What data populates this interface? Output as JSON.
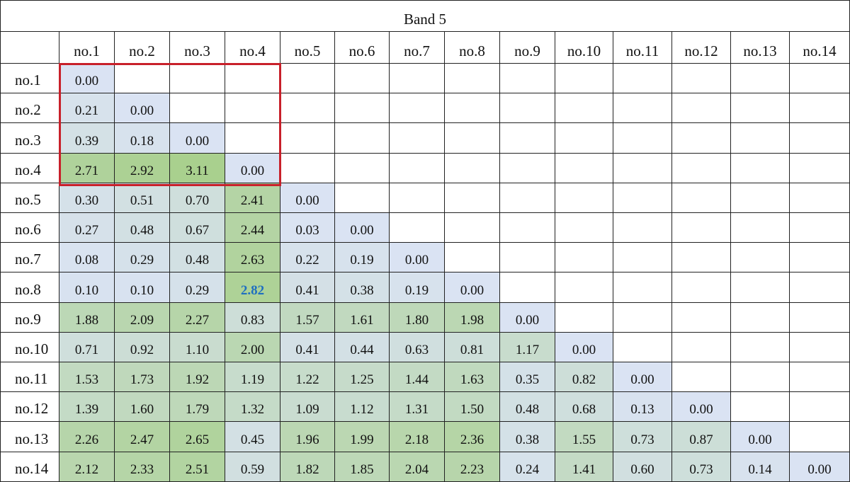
{
  "title": "Band 5",
  "columns": [
    "no.1",
    "no.2",
    "no.3",
    "no.4",
    "no.5",
    "no.6",
    "no.7",
    "no.8",
    "no.9",
    "no.10",
    "no.11",
    "no.12",
    "no.13",
    "no.14"
  ],
  "rows": [
    {
      "label": "no.1",
      "values": [
        "0.00"
      ]
    },
    {
      "label": "no.2",
      "values": [
        "0.21",
        "0.00"
      ]
    },
    {
      "label": "no.3",
      "values": [
        "0.39",
        "0.18",
        "0.00"
      ]
    },
    {
      "label": "no.4",
      "values": [
        "2.71",
        "2.92",
        "3.11",
        "0.00"
      ]
    },
    {
      "label": "no.5",
      "values": [
        "0.30",
        "0.51",
        "0.70",
        "2.41",
        "0.00"
      ]
    },
    {
      "label": "no.6",
      "values": [
        "0.27",
        "0.48",
        "0.67",
        "2.44",
        "0.03",
        "0.00"
      ]
    },
    {
      "label": "no.7",
      "values": [
        "0.08",
        "0.29",
        "0.48",
        "2.63",
        "0.22",
        "0.19",
        "0.00"
      ]
    },
    {
      "label": "no.8",
      "values": [
        "0.10",
        "0.10",
        "0.29",
        "2.82",
        "0.41",
        "0.38",
        "0.19",
        "0.00"
      ]
    },
    {
      "label": "no.9",
      "values": [
        "1.88",
        "2.09",
        "2.27",
        "0.83",
        "1.57",
        "1.61",
        "1.80",
        "1.98",
        "0.00"
      ]
    },
    {
      "label": "no.10",
      "values": [
        "0.71",
        "0.92",
        "1.10",
        "2.00",
        "0.41",
        "0.44",
        "0.63",
        "0.81",
        "1.17",
        "0.00"
      ]
    },
    {
      "label": "no.11",
      "values": [
        "1.53",
        "1.73",
        "1.92",
        "1.19",
        "1.22",
        "1.25",
        "1.44",
        "1.63",
        "0.35",
        "0.82",
        "0.00"
      ]
    },
    {
      "label": "no.12",
      "values": [
        "1.39",
        "1.60",
        "1.79",
        "1.32",
        "1.09",
        "1.12",
        "1.31",
        "1.50",
        "0.48",
        "0.68",
        "0.13",
        "0.00"
      ]
    },
    {
      "label": "no.13",
      "values": [
        "2.26",
        "2.47",
        "2.65",
        "0.45",
        "1.96",
        "1.99",
        "2.18",
        "2.36",
        "0.38",
        "1.55",
        "0.73",
        "0.87",
        "0.00"
      ]
    },
    {
      "label": "no.14",
      "values": [
        "2.12",
        "2.33",
        "2.51",
        "0.59",
        "1.82",
        "1.85",
        "2.04",
        "2.23",
        "0.24",
        "1.41",
        "0.60",
        "0.73",
        "0.14",
        "0.00"
      ]
    }
  ]
}
